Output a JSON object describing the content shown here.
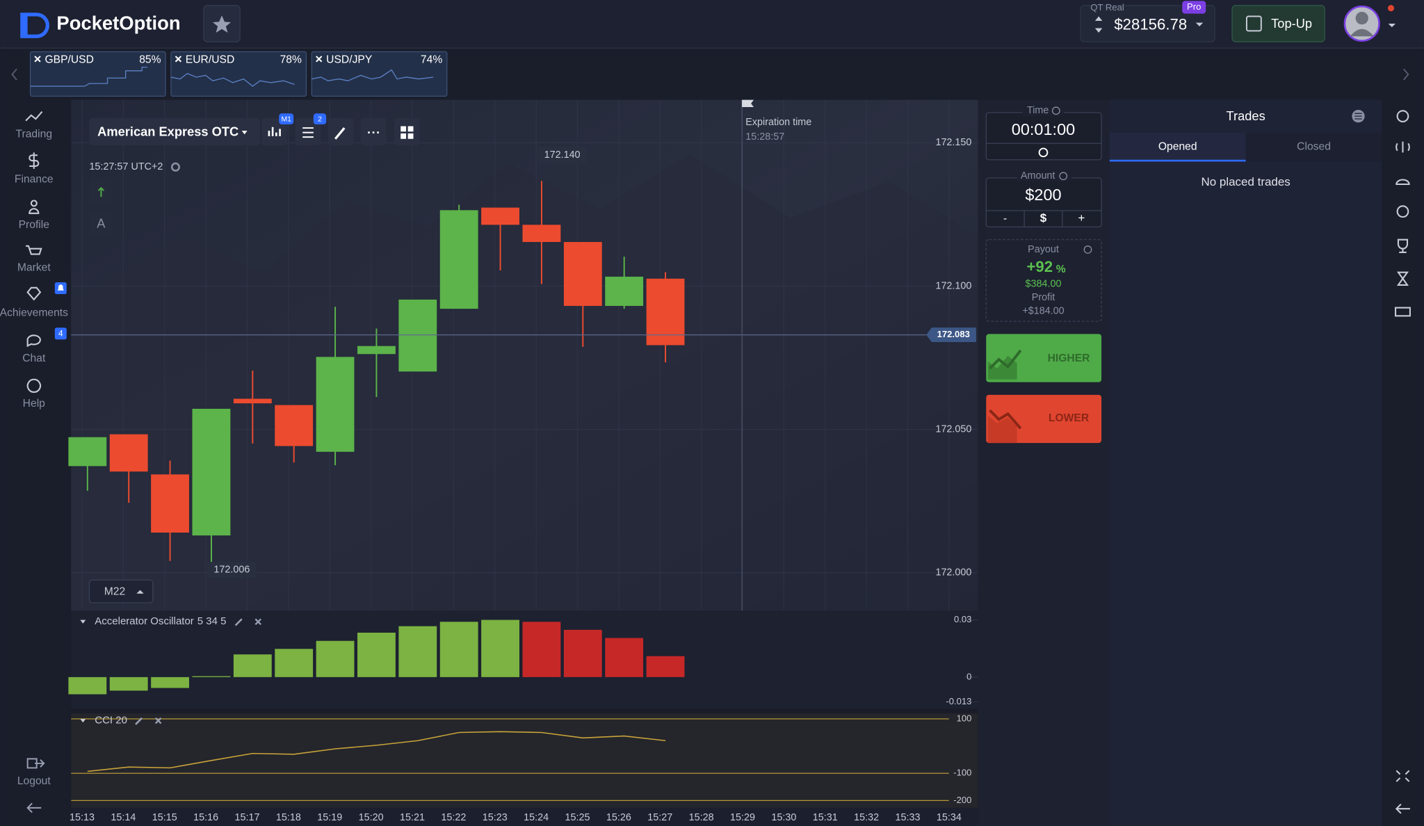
{
  "header": {
    "brand": "PocketOption",
    "account_label": "QT Real",
    "account_badge": "Pro",
    "balance": "$28156.78",
    "top_up": "Top-Up"
  },
  "asset_tabs": [
    {
      "pair": "GBP/USD",
      "payout": "85%"
    },
    {
      "pair": "EUR/USD",
      "payout": "78%"
    },
    {
      "pair": "USD/JPY",
      "payout": "74%"
    }
  ],
  "sidebar": {
    "items": [
      "Trading",
      "Finance",
      "Profile",
      "Market",
      "Achievements",
      "Chat",
      "Help"
    ],
    "chat_badge": "4",
    "logout": "Logout"
  },
  "chart": {
    "asset": "American Express OTC",
    "timeframe_badge": "M1",
    "indicator_badge": "2",
    "clock": "15:27:57",
    "timezone": "UTC+2",
    "text_tool": "A",
    "period": "M22",
    "expiration_label": "Expiration time",
    "expiration_time": "15:28:57",
    "high_label": {
      "value": 172.14,
      "label": "172.140"
    },
    "low_label": 172.006,
    "current_price": 172.083,
    "ylim": [
      171.987,
      172.165
    ],
    "yticks": [
      {
        "value": 172.15,
        "label": "172.150"
      },
      {
        "value": 172.1,
        "label": "172.100"
      },
      {
        "value": 172.05,
        "label": "172.050"
      },
      {
        "value": 172,
        "label": "172.000"
      }
    ],
    "times": [
      "15:13",
      "15:14",
      "15:15",
      "15:16",
      "15:17",
      "15:18",
      "15:19",
      "15:20",
      "15:21",
      "15:22",
      "15:23",
      "15:24",
      "15:25",
      "15:26",
      "15:27",
      "15:28",
      "15:29",
      "15:30",
      "15:31",
      "15:32",
      "15:33",
      "15:34"
    ],
    "candles": {
      "open": [
        172.0372,
        172.0483,
        172.0343,
        172.013,
        172.0607,
        172.0585,
        172.0422,
        172.0763,
        172.0702,
        172.0921,
        172.1274,
        172.1214,
        172.1154,
        172.0931,
        172.1026
      ],
      "high": [
        172.0473,
        172.0483,
        172.0391,
        172.0572,
        172.0705,
        172.0585,
        172.0928,
        172.0852,
        172.0953,
        172.1284,
        172.1274,
        172.1367,
        172.1154,
        172.1103,
        172.1049
      ],
      "low": [
        172.0286,
        172.0244,
        172.0041,
        172.0025,
        172.0451,
        172.0384,
        172.0375,
        172.0613,
        172.0702,
        172.0921,
        172.1055,
        172.1007,
        172.0788,
        172.0921,
        172.0734
      ],
      "close": [
        172.0473,
        172.0353,
        172.014,
        172.0572,
        172.0591,
        172.0442,
        172.0753,
        172.0791,
        172.0953,
        172.1265,
        172.1214,
        172.1154,
        172.0931,
        172.1033,
        172.0794
      ]
    },
    "oscillator": {
      "name": "Accelerator Oscillator",
      "params": "5 34 5",
      "values": [
        -0.009,
        -0.0071,
        -0.0057,
        0.0005,
        0.0119,
        0.0148,
        0.019,
        0.0233,
        0.0267,
        0.029,
        0.03,
        0.029,
        0.0248,
        0.0205,
        0.011
      ],
      "ylim": [
        -0.0162,
        0.0333
      ],
      "yticks": [
        0.03,
        0,
        -0.013
      ]
    },
    "cci": {
      "name": "CCI 20",
      "values": [
        -93,
        -77,
        -80,
        -53,
        -27,
        -30,
        -10,
        3,
        20,
        50,
        53,
        50,
        30,
        37,
        20
      ],
      "ylim": [
        -227,
        120
      ],
      "yticks": [
        100,
        -100,
        -200
      ]
    }
  },
  "trade_panel": {
    "time_label": "Time",
    "time": "00:01:00",
    "amount_label": "Amount",
    "amount": "$200",
    "minus": "-",
    "currency": "$",
    "plus": "+",
    "payout_label": "Payout",
    "payout": "+92",
    "payout_unit": "%",
    "payout_amount": "$384.00",
    "profit_label": "Profit",
    "profit": "+$184.00",
    "higher": "HIGHER",
    "lower": "LOWER"
  },
  "trades": {
    "title": "Trades",
    "tabs": [
      "Opened",
      "Closed"
    ],
    "empty": "No placed trades"
  }
}
